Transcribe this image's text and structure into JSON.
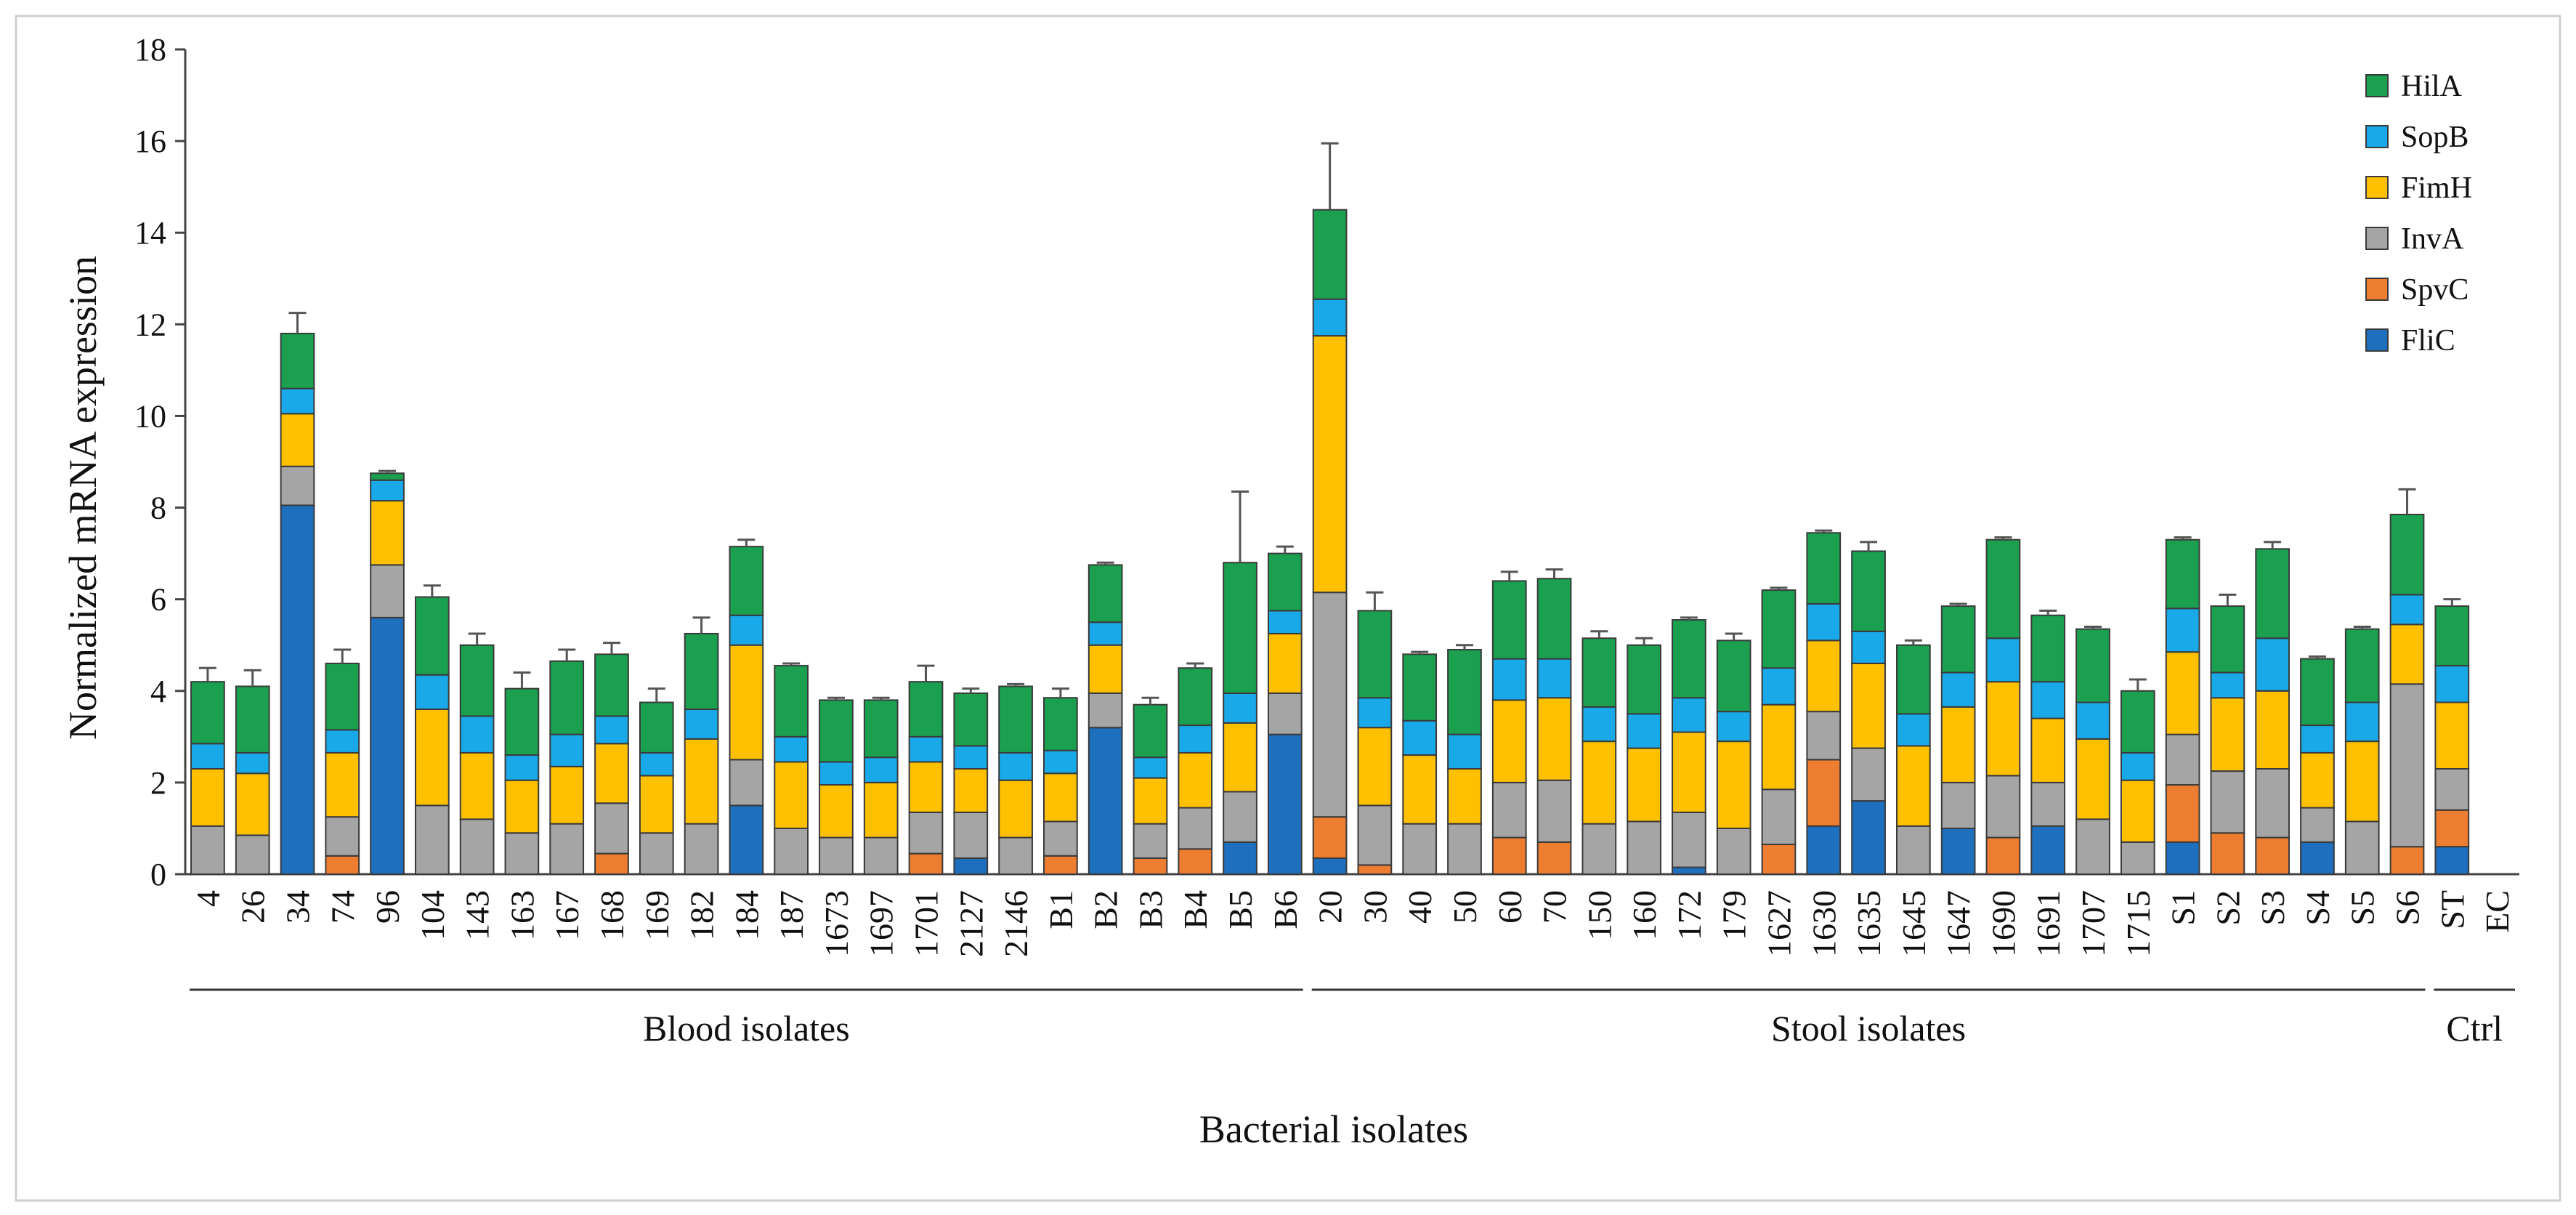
{
  "chart_data": {
    "type": "bar",
    "stacked": true,
    "ylabel": "Normalized mRNA expression",
    "xlabel": "Bacterial isolates",
    "ylim": [
      0,
      18
    ],
    "yticks": [
      0,
      2,
      4,
      6,
      8,
      10,
      12,
      14,
      16,
      18
    ],
    "categories": [
      "4",
      "26",
      "34",
      "74",
      "96",
      "104",
      "143",
      "163",
      "167",
      "168",
      "169",
      "182",
      "184",
      "187",
      "1673",
      "1697",
      "1701",
      "2127",
      "2146",
      "B1",
      "B2",
      "B3",
      "B4",
      "B5",
      "B6",
      "20",
      "30",
      "40",
      "50",
      "60",
      "70",
      "150",
      "160",
      "172",
      "179",
      "1627",
      "1630",
      "1635",
      "1645",
      "1647",
      "1690",
      "1691",
      "1707",
      "1715",
      "S1",
      "S2",
      "S3",
      "S4",
      "S5",
      "S6",
      "ST",
      "EC"
    ],
    "groups": [
      {
        "label": "Blood isolates",
        "from": 0,
        "to": 24
      },
      {
        "label": "Stool isolates",
        "from": 25,
        "to": 49
      },
      {
        "label": "Ctrl",
        "from": 50,
        "to": 51
      }
    ],
    "legend_position": "top-right",
    "legend_order": [
      "HilA",
      "SopB",
      "FimH",
      "InvA",
      "SpvC",
      "FliC"
    ],
    "series": [
      {
        "name": "FliC",
        "color": "#1F6FBF",
        "values": [
          0,
          0,
          8.05,
          0,
          5.6,
          0,
          0,
          0,
          0,
          0,
          0,
          0,
          1.5,
          0,
          0,
          0,
          0,
          0.35,
          0,
          0,
          3.2,
          0,
          0,
          0.7,
          3.05,
          0.35,
          0,
          0,
          0,
          0,
          0,
          0,
          0,
          0.15,
          0,
          0,
          1.05,
          1.6,
          0,
          1.0,
          0,
          1.05,
          0,
          0,
          0.7,
          0,
          0,
          0.7,
          0,
          0,
          0.6,
          0
        ]
      },
      {
        "name": "SpvC",
        "color": "#ED7D31",
        "values": [
          0,
          0,
          0,
          0.4,
          0,
          0,
          0,
          0,
          0,
          0.45,
          0,
          0,
          0,
          0,
          0,
          0,
          0.45,
          0,
          0,
          0.4,
          0,
          0.35,
          0.55,
          0,
          0,
          0.9,
          0.2,
          0,
          0,
          0.8,
          0.7,
          0,
          0,
          0,
          0,
          0.65,
          1.45,
          0,
          0,
          0,
          0.8,
          0,
          0,
          0,
          1.25,
          0.9,
          0.8,
          0,
          0,
          0.6,
          0.8,
          0
        ]
      },
      {
        "name": "InvA",
        "color": "#A5A5A5",
        "values": [
          1.05,
          0.85,
          0.85,
          0.85,
          1.15,
          1.5,
          1.2,
          0.9,
          1.1,
          1.1,
          0.9,
          1.1,
          1.0,
          1.0,
          0.8,
          0.8,
          0.9,
          1.0,
          0.8,
          0.75,
          0.75,
          0.75,
          0.9,
          1.1,
          0.9,
          4.9,
          1.3,
          1.1,
          1.1,
          1.2,
          1.35,
          1.1,
          1.15,
          1.2,
          1.0,
          1.2,
          1.05,
          1.15,
          1.05,
          1.0,
          1.35,
          0.95,
          1.2,
          0.7,
          1.1,
          1.35,
          1.5,
          0.75,
          1.15,
          3.55,
          0.9,
          0
        ]
      },
      {
        "name": "FimH",
        "color": "#FFC000",
        "values": [
          1.25,
          1.35,
          1.15,
          1.4,
          1.4,
          2.1,
          1.45,
          1.15,
          1.25,
          1.3,
          1.25,
          1.85,
          2.5,
          1.45,
          1.15,
          1.2,
          1.1,
          0.95,
          1.25,
          1.05,
          1.05,
          1.0,
          1.2,
          1.5,
          1.3,
          5.6,
          1.7,
          1.5,
          1.2,
          1.8,
          1.8,
          1.8,
          1.6,
          1.75,
          1.9,
          1.85,
          1.55,
          1.85,
          1.75,
          1.65,
          2.05,
          1.4,
          1.75,
          1.35,
          1.8,
          1.6,
          1.7,
          1.2,
          1.75,
          1.3,
          1.45,
          0
        ]
      },
      {
        "name": "SopB",
        "color": "#19A9E8",
        "values": [
          0.55,
          0.45,
          0.55,
          0.5,
          0.45,
          0.75,
          0.8,
          0.55,
          0.7,
          0.6,
          0.5,
          0.65,
          0.65,
          0.55,
          0.5,
          0.55,
          0.55,
          0.5,
          0.6,
          0.5,
          0.5,
          0.45,
          0.6,
          0.65,
          0.5,
          0.8,
          0.65,
          0.75,
          0.75,
          0.9,
          0.85,
          0.75,
          0.75,
          0.75,
          0.65,
          0.8,
          0.8,
          0.7,
          0.7,
          0.75,
          0.95,
          0.8,
          0.8,
          0.6,
          0.95,
          0.55,
          1.15,
          0.6,
          0.85,
          0.65,
          0.8,
          0
        ]
      },
      {
        "name": "HilA",
        "color": "#1AA04F",
        "values": [
          1.35,
          1.45,
          1.2,
          1.45,
          0.15,
          1.7,
          1.55,
          1.45,
          1.6,
          1.35,
          1.1,
          1.65,
          1.5,
          1.55,
          1.35,
          1.25,
          1.2,
          1.15,
          1.45,
          1.15,
          1.25,
          1.15,
          1.25,
          2.85,
          1.25,
          1.95,
          1.9,
          1.45,
          1.85,
          1.7,
          1.75,
          1.5,
          1.5,
          1.7,
          1.55,
          1.7,
          1.55,
          1.75,
          1.5,
          1.45,
          2.15,
          1.45,
          1.6,
          1.35,
          1.5,
          1.45,
          1.95,
          1.45,
          1.6,
          1.75,
          1.3,
          0
        ]
      }
    ],
    "error": [
      0.3,
      0.35,
      0.45,
      0.3,
      0.05,
      0.25,
      0.25,
      0.35,
      0.25,
      0.25,
      0.3,
      0.35,
      0.15,
      0.05,
      0.05,
      0.05,
      0.35,
      0.1,
      0.05,
      0.2,
      0.05,
      0.15,
      0.1,
      1.55,
      0.15,
      1.45,
      0.4,
      0.05,
      0.1,
      0.2,
      0.2,
      0.15,
      0.15,
      0.05,
      0.15,
      0.05,
      0.05,
      0.2,
      0.1,
      0.05,
      0.05,
      0.1,
      0.05,
      0.25,
      0.05,
      0.25,
      0.15,
      0.05,
      0.05,
      0.55,
      0.15,
      0
    ]
  }
}
